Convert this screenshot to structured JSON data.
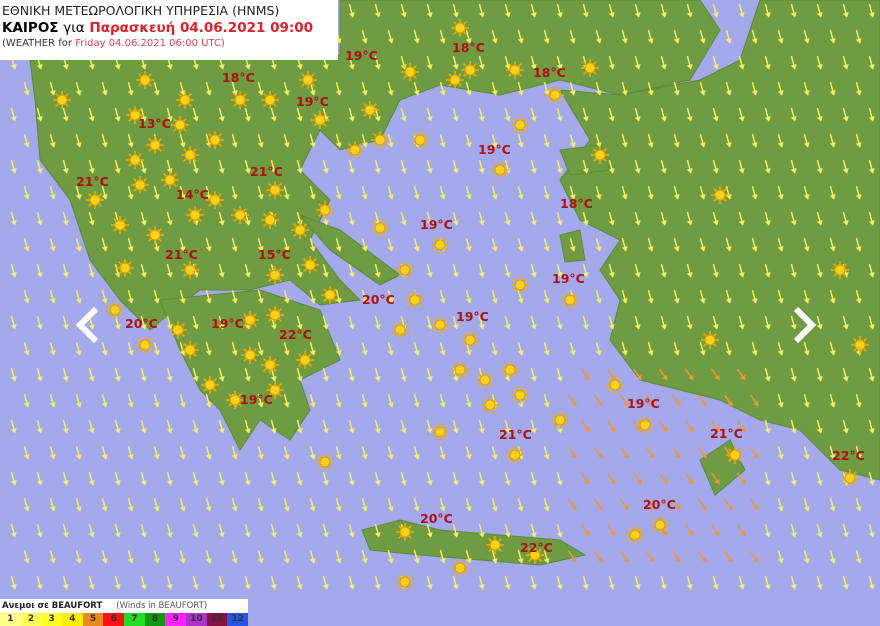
{
  "header": {
    "agency": "ΕΘΝΙΚΗ ΜΕΤΕΩΡΟΛΟΓΙΚΗ ΥΠΗΡΕΣΙΑ (HNMS)",
    "weather_gr": "ΚΑΙΡΟΣ",
    "for_gr": "για",
    "date_gr": "Παρασκευή 04.06.2021 09:00",
    "weather_en_prefix": "(WEATHER for",
    "date_en": "Friday 04.06.2021 06:00 UTC)"
  },
  "temperatures": [
    "19°C",
    "18°C",
    "18°C",
    "19°C",
    "18°C",
    "13°C",
    "19°C",
    "21°C",
    "21°C",
    "14°C",
    "18°C",
    "19°C",
    "21°C",
    "15°C",
    "19°C",
    "20°C",
    "20°C",
    "19°C",
    "19°C",
    "22°C",
    "19°C",
    "19°C",
    "21°C",
    "21°C",
    "22°C",
    "20°C",
    "20°C",
    "22°C"
  ],
  "navigation": {
    "prev_icon": "chevron-left-icon",
    "next_icon": "chevron-right-icon"
  },
  "legend": {
    "title_gr": "Ανεμοι σε BEAUFORT",
    "title_en": "(Winds in BEAUFORT)",
    "scale": [
      {
        "v": "1",
        "c": "#ffff88"
      },
      {
        "v": "2",
        "c": "#ffff55"
      },
      {
        "v": "3",
        "c": "#ffff22"
      },
      {
        "v": "4",
        "c": "#ffee00"
      },
      {
        "v": "5",
        "c": "#e88a20"
      },
      {
        "v": "6",
        "c": "#ff1010"
      },
      {
        "v": "7",
        "c": "#22dd22"
      },
      {
        "v": "8",
        "c": "#119911"
      },
      {
        "v": "9",
        "c": "#ff22ff"
      },
      {
        "v": "10",
        "c": "#aa33cc"
      },
      {
        "v": "11",
        "c": "#881144"
      },
      {
        "v": "12",
        "c": "#2255ee"
      }
    ]
  },
  "colors": {
    "sea": "#a4a9ee",
    "land": "#6a9a40",
    "wind_light": "#f2f060",
    "wind_moderate": "#f0963a",
    "temp_label": "#b01010"
  }
}
